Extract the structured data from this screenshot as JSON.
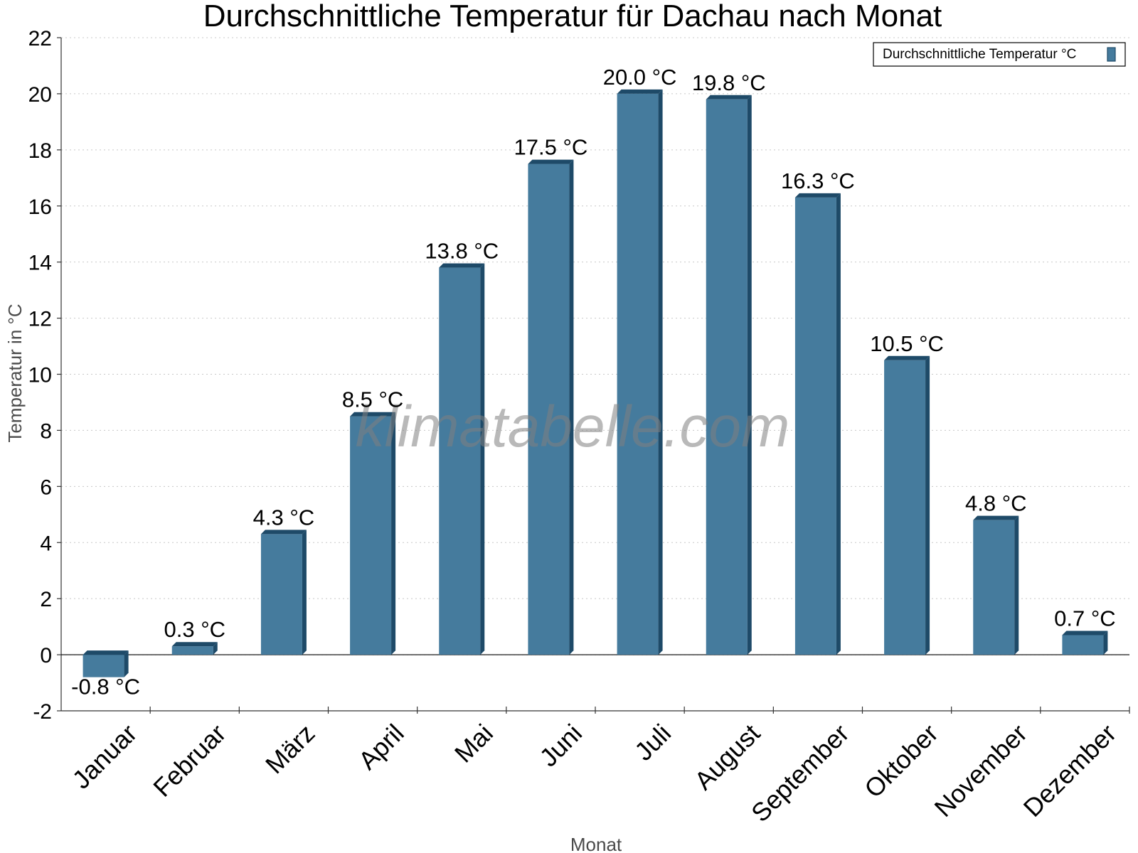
{
  "chart_data": {
    "type": "bar",
    "title": "Durchschnittliche Temperatur für Dachau nach Monat",
    "xlabel": "Monat",
    "ylabel": "Temperatur in °C",
    "ylim": [
      -2,
      22
    ],
    "yticks": [
      -2,
      0,
      2,
      4,
      6,
      8,
      10,
      12,
      14,
      16,
      18,
      20,
      22
    ],
    "grid": true,
    "legend_position": "top-right",
    "categories": [
      "Januar",
      "Februar",
      "März",
      "April",
      "Mai",
      "Juni",
      "Juli",
      "August",
      "September",
      "Oktober",
      "November",
      "Dezember"
    ],
    "series": [
      {
        "name": "Durchschnittliche Temperatur °C",
        "color": "#457b9d",
        "values": [
          -0.8,
          0.3,
          4.3,
          8.5,
          13.8,
          17.5,
          20.0,
          19.8,
          16.3,
          10.5,
          4.8,
          0.7
        ],
        "labels": [
          "-0.8 °C",
          "0.3 °C",
          "4.3 °C",
          "8.5 °C",
          "13.8 °C",
          "17.5 °C",
          "20.0 °C",
          "19.8 °C",
          "16.3 °C",
          "10.5 °C",
          "4.8 °C",
          "0.7 °C"
        ]
      }
    ]
  },
  "colors": {
    "bar": "#457b9d",
    "bar_edge": "#1e4a68",
    "grid": "#c8c8c8",
    "axis": "#333333"
  },
  "watermark": "klimatabelle.com"
}
